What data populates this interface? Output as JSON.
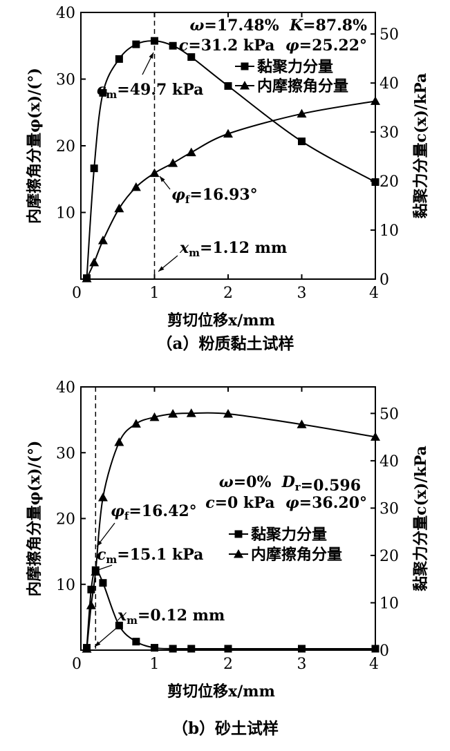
{
  "chart_data": [
    {
      "type": "line",
      "caption": "（a）粉质黏土试样",
      "xlabel": "剪切位移x/mm",
      "ylabel_left": "内摩擦角分量φ(x)/(°)",
      "ylabel_right": "黏聚力分量c(x)/kPa",
      "xlim": [
        0,
        4
      ],
      "xticks": [
        "0",
        "1",
        "2",
        "3",
        "4"
      ],
      "ylim_left": [
        0,
        40
      ],
      "yticks_left": [
        "0",
        "10",
        "20",
        "30",
        "40"
      ],
      "ylim_right": [
        0,
        54.4
      ],
      "yticks_right": [
        "0",
        "10",
        "20",
        "30",
        "40",
        "50"
      ],
      "series": [
        {
          "name": "黏聚力分量",
          "marker": "square",
          "axis": "right",
          "x": [
            0.08,
            0.18,
            0.3,
            0.52,
            0.75,
            1.0,
            1.25,
            1.5,
            2.0,
            3.0,
            4.0
          ],
          "y": [
            0.2,
            22.6,
            38.0,
            44.9,
            47.9,
            48.6,
            47.6,
            45.3,
            39.4,
            28.1,
            19.8
          ]
        },
        {
          "name": "内摩擦角分量",
          "marker": "triangle",
          "axis": "left",
          "x": [
            0.08,
            0.18,
            0.3,
            0.52,
            0.75,
            1.0,
            1.25,
            1.5,
            2.0,
            3.0,
            4.0
          ],
          "y": [
            0.1,
            2.5,
            5.8,
            10.6,
            13.8,
            15.9,
            17.4,
            19.0,
            21.8,
            24.8,
            26.7
          ]
        }
      ],
      "params": [
        "ω=17.48%  K=87.8%",
        "c=31.2 kPa  φ=25.22°"
      ],
      "annotations": [
        {
          "key": "cm",
          "label": "c",
          "sub": "m",
          "text": "=49.7 kPa",
          "at_x": 1.0,
          "at_y": 48.6,
          "axis": "right"
        },
        {
          "key": "phif",
          "label": "φ",
          "sub": "f",
          "text": "=16.93°",
          "at_x": 1.0,
          "at_y": 15.9,
          "axis": "left"
        },
        {
          "key": "xm",
          "label": "x",
          "sub": "m",
          "text": "=1.12 mm",
          "at_x": 1.0,
          "at_y": 0,
          "axis": "left"
        }
      ],
      "dashed_x": 1.0
    },
    {
      "type": "line",
      "caption": "（b）砂土试样",
      "xlabel": "剪切位移x/mm",
      "ylabel_left": "内摩擦角分量φ(x)/(°)",
      "ylabel_right": "黏聚力分量c(x)/kPa",
      "xlim": [
        0,
        4
      ],
      "xticks": [
        "0",
        "1",
        "2",
        "3",
        "4"
      ],
      "ylim_left": [
        0,
        40
      ],
      "yticks_left": [
        "0",
        "10",
        "20",
        "30",
        "40"
      ],
      "ylim_right": [
        0,
        55.6
      ],
      "yticks_right": [
        "0",
        "10",
        "20",
        "30",
        "40",
        "50"
      ],
      "series": [
        {
          "name": "黏聚力分量",
          "marker": "square",
          "axis": "right",
          "x": [
            0.08,
            0.14,
            0.2,
            0.3,
            0.52,
            0.75,
            1.0,
            1.25,
            1.5,
            2.0,
            3.0,
            4.0
          ],
          "y": [
            0.5,
            12.8,
            16.9,
            14.2,
            5.2,
            1.8,
            0.5,
            0.3,
            0.3,
            0.3,
            0.3,
            0.3
          ]
        },
        {
          "name": "内摩擦角分量",
          "marker": "triangle",
          "axis": "left",
          "x": [
            0.08,
            0.14,
            0.2,
            0.3,
            0.52,
            0.75,
            1.0,
            1.25,
            1.5,
            2.0,
            3.0,
            4.0
          ],
          "y": [
            0.2,
            6.8,
            11.9,
            23.2,
            31.6,
            34.4,
            35.4,
            35.9,
            36.0,
            35.9,
            34.3,
            32.4
          ]
        }
      ],
      "params": [
        "ω=0%  Dr=0.596",
        "c=0 kPa  φ=36.20°"
      ],
      "annotations": [
        {
          "key": "phif",
          "label": "φ",
          "sub": "f",
          "text": "=16.42°",
          "at_x": 0.2,
          "at_y": 11.9,
          "axis": "left"
        },
        {
          "key": "cm",
          "label": "c",
          "sub": "m",
          "text": "=15.1 kPa",
          "at_x": 0.2,
          "at_y": 16.9,
          "axis": "right"
        },
        {
          "key": "xm",
          "label": "x",
          "sub": "m",
          "text": "=0.12 mm",
          "at_x": 0.2,
          "at_y": 0,
          "axis": "left"
        }
      ],
      "dashed_x": 0.2
    }
  ]
}
